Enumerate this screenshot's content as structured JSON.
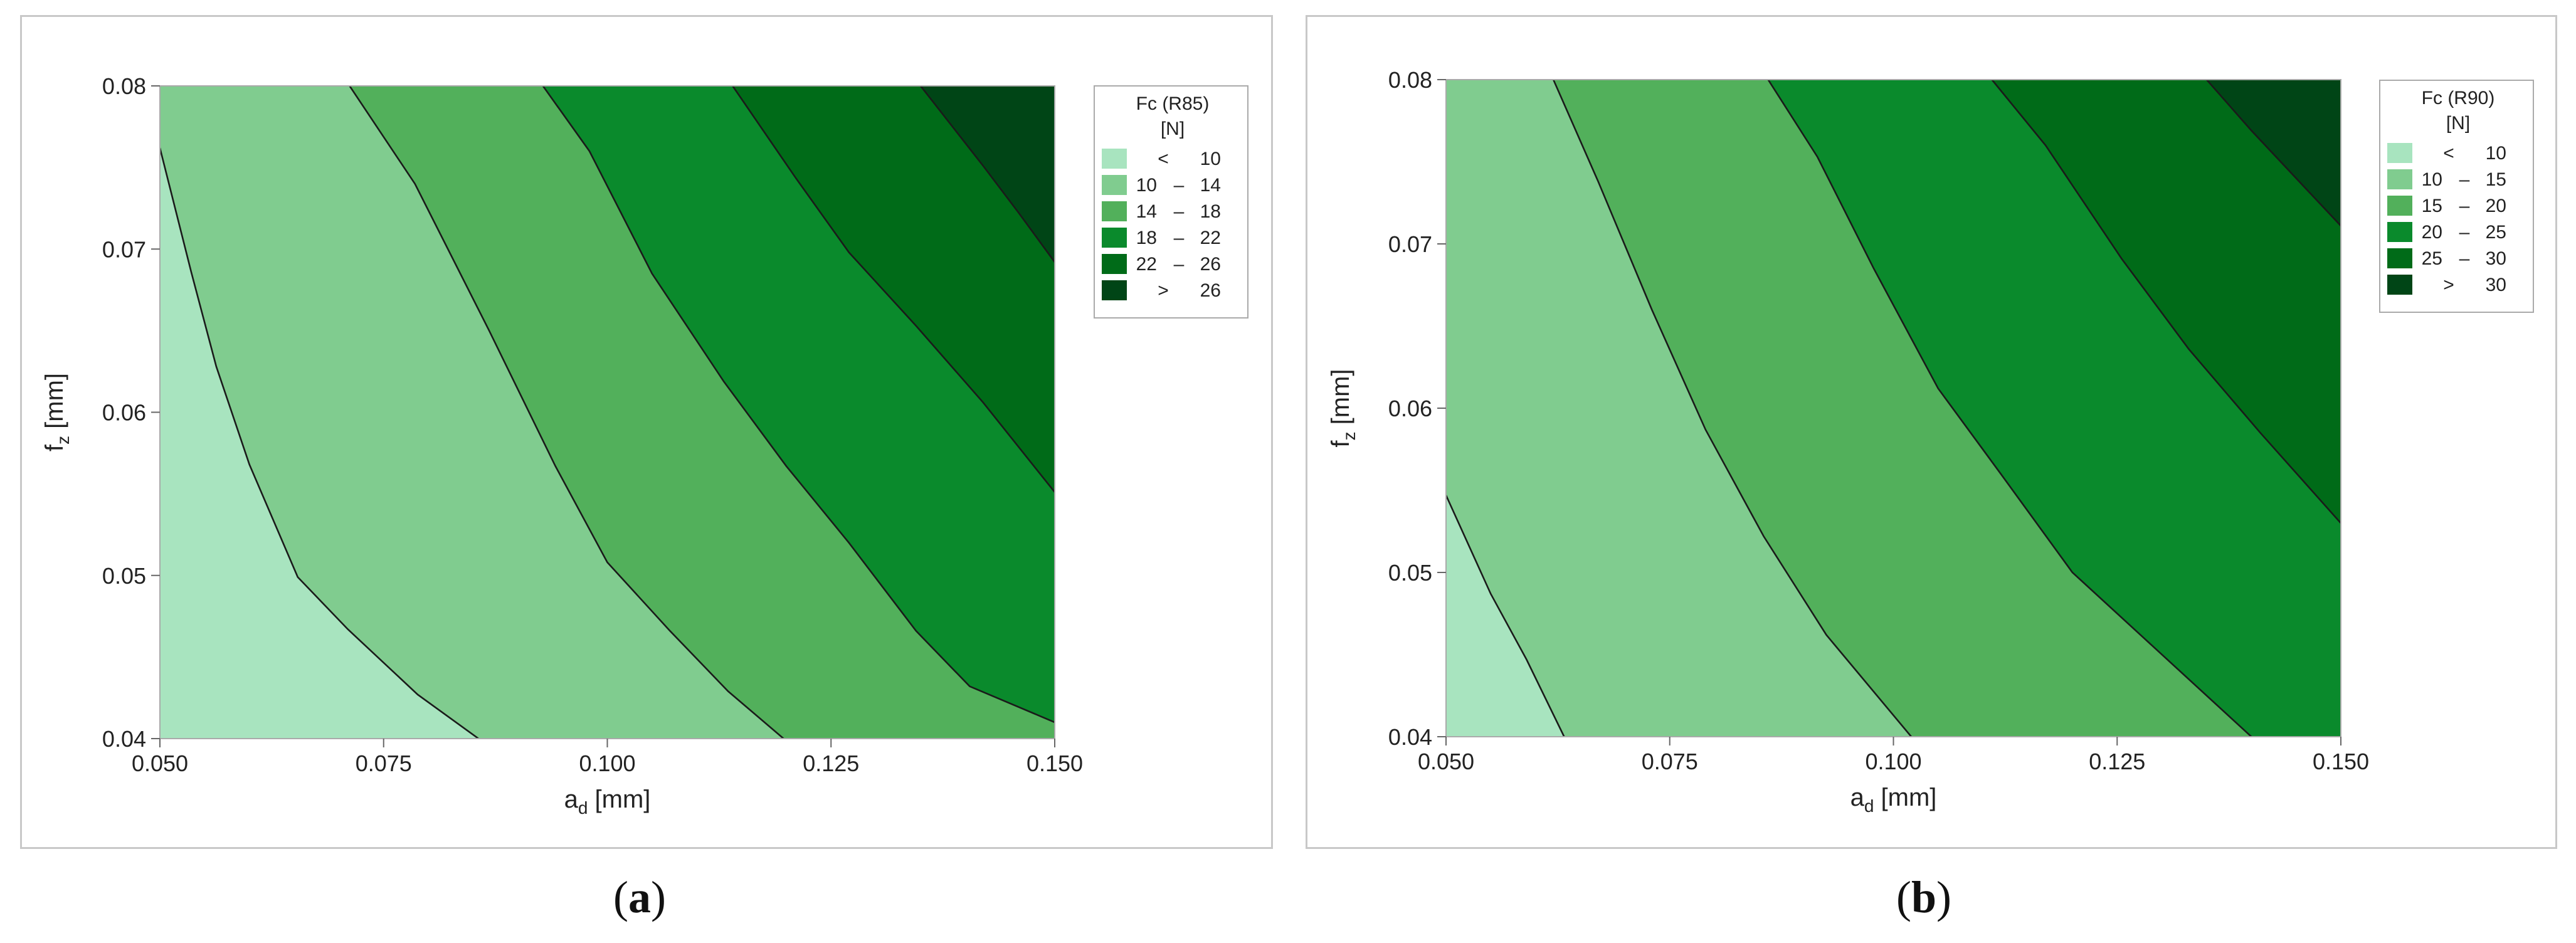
{
  "captions": [
    {
      "open": "(",
      "letter": "a",
      "close": ")"
    },
    {
      "open": "(",
      "letter": "b",
      "close": ")"
    }
  ],
  "chart_data": [
    {
      "type": "contour",
      "title": "",
      "xlabel_main": "a",
      "xlabel_sub": "d",
      "xlabel_unit": " [mm]",
      "ylabel_main": "f",
      "ylabel_sub": "z",
      "ylabel_unit": " [mm]",
      "xlim": [
        0.05,
        0.15
      ],
      "ylim": [
        0.04,
        0.08
      ],
      "x_ticks": [
        0.05,
        0.075,
        0.1,
        0.125,
        0.15
      ],
      "x_tick_labels": [
        "0.050",
        "0.075",
        "0.100",
        "0.125",
        "0.150"
      ],
      "y_ticks": [
        0.04,
        0.05,
        0.06,
        0.07,
        0.08
      ],
      "y_tick_labels": [
        "0.04",
        "0.05",
        "0.06",
        "0.07",
        "0.08"
      ],
      "legend": {
        "title_line1": "Fc (R85)",
        "title_line2": "[N]",
        "position": "right"
      },
      "levels": [
        {
          "op": "<",
          "lo": "",
          "dash": "",
          "hi": "10",
          "color": "#a8e4bf"
        },
        {
          "op": "",
          "lo": "10",
          "dash": "–",
          "hi": "14",
          "color": "#80cc8f"
        },
        {
          "op": "",
          "lo": "14",
          "dash": "–",
          "hi": "18",
          "color": "#52b05b"
        },
        {
          "op": "",
          "lo": "18",
          "dash": "–",
          "hi": "22",
          "color": "#0a8a2c"
        },
        {
          "op": "",
          "lo": "22",
          "dash": "–",
          "hi": "26",
          "color": "#006b18"
        },
        {
          "op": ">",
          "lo": "",
          "dash": "",
          "hi": "26",
          "color": "#004516"
        }
      ],
      "contours": [
        {
          "level": 10,
          "points": [
            [
              0.05,
              0.0762
            ],
            [
              0.0535,
              0.0686
            ],
            [
              0.0563,
              0.0628
            ],
            [
              0.06,
              0.0568
            ],
            [
              0.0654,
              0.0499
            ],
            [
              0.071,
              0.0467
            ],
            [
              0.0788,
              0.0427
            ],
            [
              0.0856,
              0.04
            ]
          ]
        },
        {
          "level": 14,
          "points": [
            [
              0.0712,
              0.08
            ],
            [
              0.0785,
              0.074
            ],
            [
              0.0868,
              0.065
            ],
            [
              0.0942,
              0.0567
            ],
            [
              0.1,
              0.0508
            ],
            [
              0.107,
              0.0466
            ],
            [
              0.1135,
              0.0429
            ],
            [
              0.1197,
              0.04
            ]
          ]
        },
        {
          "level": 18,
          "points": [
            [
              0.0928,
              0.08
            ],
            [
              0.098,
              0.076
            ],
            [
              0.105,
              0.0685
            ],
            [
              0.113,
              0.0619
            ],
            [
              0.12,
              0.0567
            ],
            [
              0.127,
              0.052
            ],
            [
              0.1345,
              0.0466
            ],
            [
              0.1405,
              0.0432
            ],
            [
              0.15,
              0.041
            ]
          ]
        },
        {
          "level": 22,
          "points": [
            [
              0.114,
              0.08
            ],
            [
              0.121,
              0.0744
            ],
            [
              0.127,
              0.0698
            ],
            [
              0.1345,
              0.0653
            ],
            [
              0.142,
              0.0606
            ],
            [
              0.15,
              0.0551
            ]
          ]
        },
        {
          "level": 26,
          "points": [
            [
              0.135,
              0.08
            ],
            [
              0.142,
              0.0751
            ],
            [
              0.146,
              0.0722
            ],
            [
              0.15,
              0.0692
            ]
          ]
        }
      ]
    },
    {
      "type": "contour",
      "title": "",
      "xlabel_main": "a",
      "xlabel_sub": "d",
      "xlabel_unit": " [mm]",
      "ylabel_main": "f",
      "ylabel_sub": "z",
      "ylabel_unit": " [mm]",
      "xlim": [
        0.05,
        0.15
      ],
      "ylim": [
        0.04,
        0.08
      ],
      "x_ticks": [
        0.05,
        0.075,
        0.1,
        0.125,
        0.15
      ],
      "x_tick_labels": [
        "0.050",
        "0.075",
        "0.100",
        "0.125",
        "0.150"
      ],
      "y_ticks": [
        0.04,
        0.05,
        0.06,
        0.07,
        0.08
      ],
      "y_tick_labels": [
        "0.04",
        "0.05",
        "0.06",
        "0.07",
        "0.08"
      ],
      "legend": {
        "title_line1": "Fc (R90)",
        "title_line2": "[N]",
        "position": "right"
      },
      "levels": [
        {
          "op": "<",
          "lo": "",
          "dash": "",
          "hi": "10",
          "color": "#a8e4bf"
        },
        {
          "op": "",
          "lo": "10",
          "dash": "–",
          "hi": "15",
          "color": "#80cc8f"
        },
        {
          "op": "",
          "lo": "15",
          "dash": "–",
          "hi": "20",
          "color": "#52b05b"
        },
        {
          "op": "",
          "lo": "20",
          "dash": "–",
          "hi": "25",
          "color": "#0a8a2c"
        },
        {
          "op": "",
          "lo": "25",
          "dash": "–",
          "hi": "30",
          "color": "#006b18"
        },
        {
          "op": ">",
          "lo": "",
          "dash": "",
          "hi": "30",
          "color": "#004516"
        }
      ],
      "contours": [
        {
          "level": 10,
          "points": [
            [
              0.05,
              0.0547
            ],
            [
              0.055,
              0.0487
            ],
            [
              0.059,
              0.0447
            ],
            [
              0.0632,
              0.04
            ]
          ]
        },
        {
          "level": 15,
          "points": [
            [
              0.062,
              0.08
            ],
            [
              0.067,
              0.0738
            ],
            [
              0.073,
              0.066
            ],
            [
              0.079,
              0.0587
            ],
            [
              0.0855,
              0.0522
            ],
            [
              0.0925,
              0.0462
            ],
            [
              0.102,
              0.04
            ]
          ]
        },
        {
          "level": 20,
          "points": [
            [
              0.086,
              0.08
            ],
            [
              0.0915,
              0.0753
            ],
            [
              0.0978,
              0.0685
            ],
            [
              0.105,
              0.0612
            ],
            [
              0.112,
              0.056
            ],
            [
              0.12,
              0.05
            ],
            [
              0.128,
              0.046
            ],
            [
              0.14,
              0.04
            ]
          ]
        },
        {
          "level": 25,
          "points": [
            [
              0.111,
              0.08
            ],
            [
              0.117,
              0.076
            ],
            [
              0.1255,
              0.0691
            ],
            [
              0.133,
              0.0636
            ],
            [
              0.141,
              0.0585
            ],
            [
              0.15,
              0.053
            ]
          ]
        },
        {
          "level": 30,
          "points": [
            [
              0.135,
              0.08
            ],
            [
              0.14,
              0.0769
            ],
            [
              0.145,
              0.074
            ],
            [
              0.15,
              0.0711
            ]
          ]
        }
      ]
    }
  ]
}
